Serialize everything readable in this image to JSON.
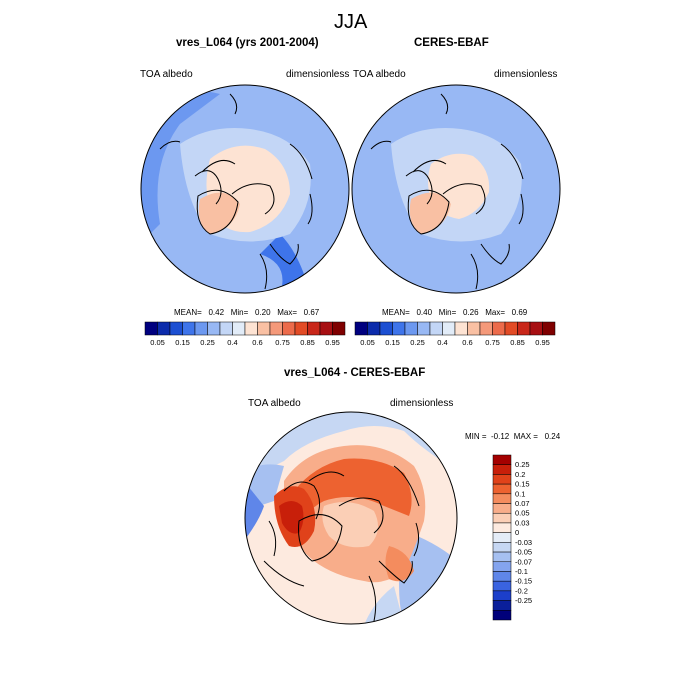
{
  "main_title": "JJA",
  "panels": [
    {
      "title": "vres_L064 (yrs 2001-2004)",
      "left_label": "TOA albedo",
      "right_label": "dimensionless",
      "stats": {
        "mean_label": "MEAN=",
        "mean": "0.42",
        "min_label": "Min=",
        "min": "0.20",
        "max_label": "Max=",
        "max": "0.67"
      }
    },
    {
      "title": "CERES-EBAF",
      "left_label": "TOA albedo",
      "right_label": "dimensionless",
      "stats": {
        "mean_label": "MEAN=",
        "mean": "0.40",
        "min_label": "Min=",
        "min": "0.26",
        "max_label": "Max=",
        "max": "0.69"
      }
    }
  ],
  "abs_colorbar": {
    "colors": [
      "#00007f",
      "#0b2bab",
      "#1c4fd2",
      "#3e74ea",
      "#6c98f0",
      "#98b8f4",
      "#c3d6f6",
      "#e2ecf8",
      "#fde3d3",
      "#f9c0a3",
      "#f4997a",
      "#ec6b4b",
      "#e24b26",
      "#c9271a",
      "#a70f12",
      "#7f0000"
    ],
    "tick_labels": [
      "0.05",
      "0.15",
      "0.25",
      "0.4",
      "0.6",
      "0.75",
      "0.85",
      "0.95"
    ]
  },
  "diff_panel": {
    "title": "vres_L064 - CERES-EBAF",
    "left_label": "TOA albedo",
    "right_label": "dimensionless",
    "stats": {
      "min_label": "MIN =",
      "min": "-0.12",
      "max_label": "MAX =",
      "max": "0.24"
    }
  },
  "diff_colorbar": {
    "colors": [
      "#a40000",
      "#c81f0a",
      "#e0421a",
      "#ed6230",
      "#f48c5e",
      "#f8ad8a",
      "#fbcfb6",
      "#fdeadf",
      "#e4ecf7",
      "#c6d7f3",
      "#a6c0f1",
      "#84a4ee",
      "#5f86e9",
      "#3a63e0",
      "#1c3fca",
      "#0a1f9a",
      "#00007a"
    ],
    "tick_labels": [
      "0.25",
      "0.2",
      "0.15",
      "0.1",
      "0.07",
      "0.05",
      "0.03",
      "0",
      "-0.03",
      "-0.05",
      "-0.07",
      "-0.1",
      "-0.15",
      "-0.2",
      "-0.25"
    ]
  }
}
